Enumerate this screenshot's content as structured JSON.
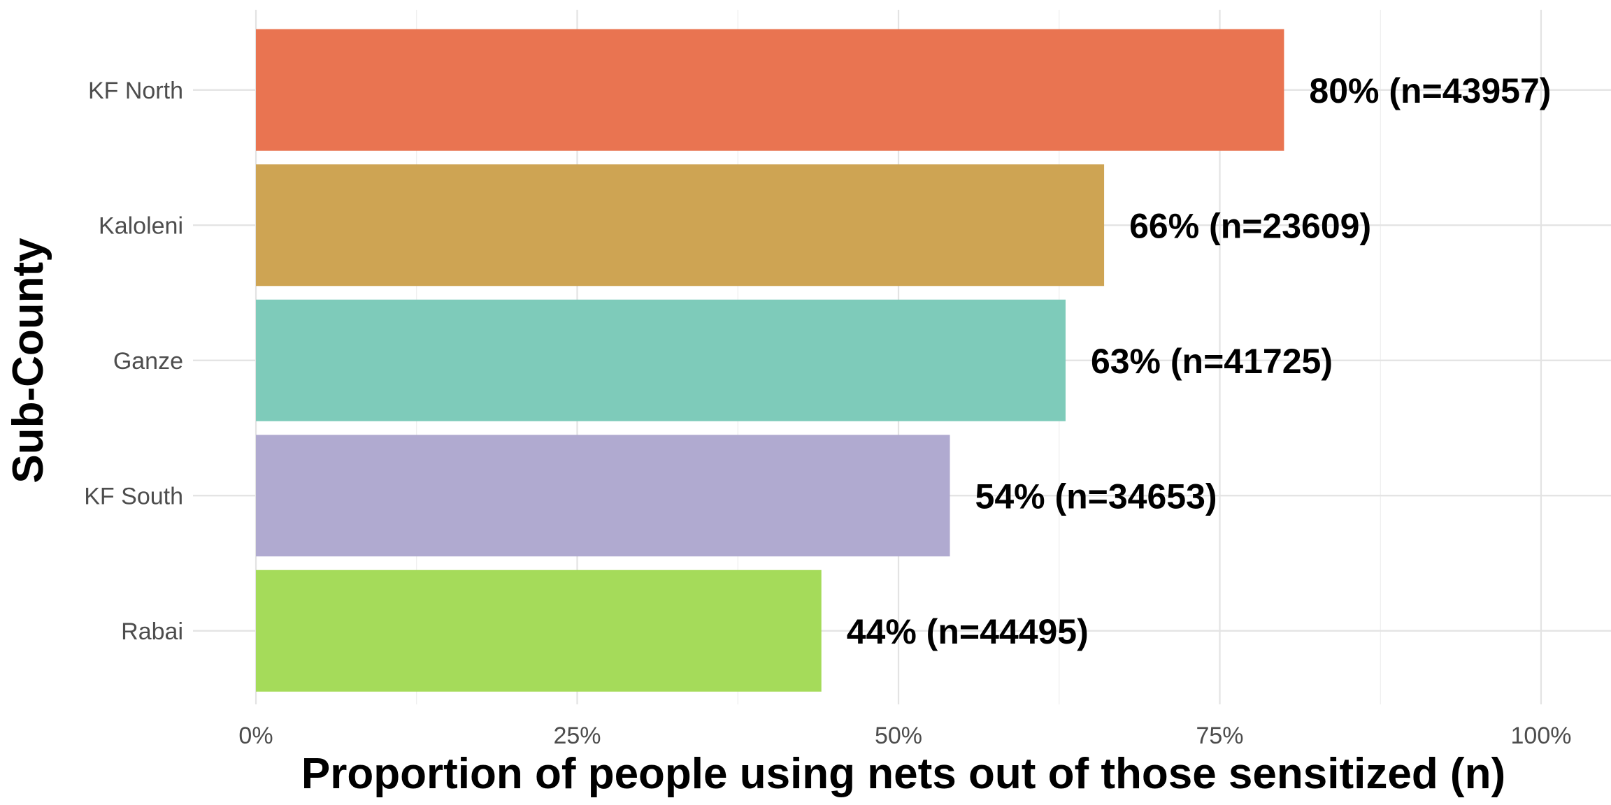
{
  "chart_data": {
    "type": "bar",
    "orientation": "horizontal",
    "title": "",
    "xlabel": "Proportion of people using nets out of those sensitized (n)",
    "ylabel": "Sub-County",
    "xlim": [
      0,
      100
    ],
    "x_ticks": [
      0,
      25,
      50,
      75,
      100
    ],
    "x_tick_labels": [
      "0%",
      "25%",
      "50%",
      "75%",
      "100%"
    ],
    "grid": true,
    "legend": "none",
    "categories": [
      "KF North",
      "Kaloleni",
      "Ganze",
      "KF South",
      "Rabai"
    ],
    "values": [
      80,
      66,
      63,
      54,
      44
    ],
    "n": [
      43957,
      23609,
      41725,
      34653,
      44495
    ],
    "data_labels": [
      "80% (n=43957)",
      "66% (n=23609)",
      "63% (n=41725)",
      "54% (n=34653)",
      "44% (n=44495)"
    ],
    "colors": [
      "#e97451",
      "#cea453",
      "#7ecbba",
      "#b0aad0",
      "#a5db5a"
    ]
  }
}
